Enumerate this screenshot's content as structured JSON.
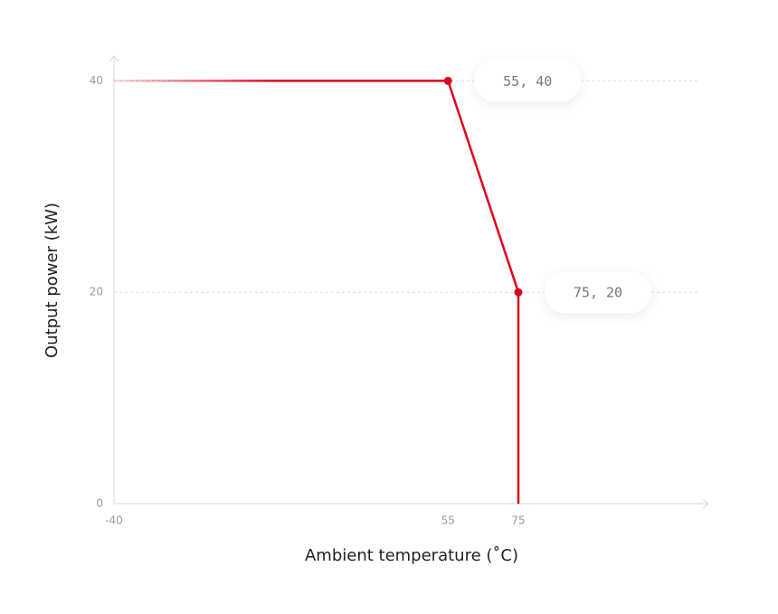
{
  "chart_data": {
    "type": "line",
    "x_label": "Ambient temperature (˚C)",
    "y_label": "Output power (kW)",
    "x": [
      -40,
      55,
      75,
      75
    ],
    "series": [
      {
        "color": "#e0001b",
        "values": [
          40,
          40,
          20,
          0
        ],
        "point_labels": [
          null,
          "55, 40",
          "75, 20",
          null
        ]
      }
    ],
    "xlim": [
      -40,
      128
    ],
    "xticks": [
      -40,
      55,
      75
    ],
    "ylim": [
      0,
      42
    ],
    "yticks": [
      0,
      20,
      40
    ],
    "grid": true
  }
}
